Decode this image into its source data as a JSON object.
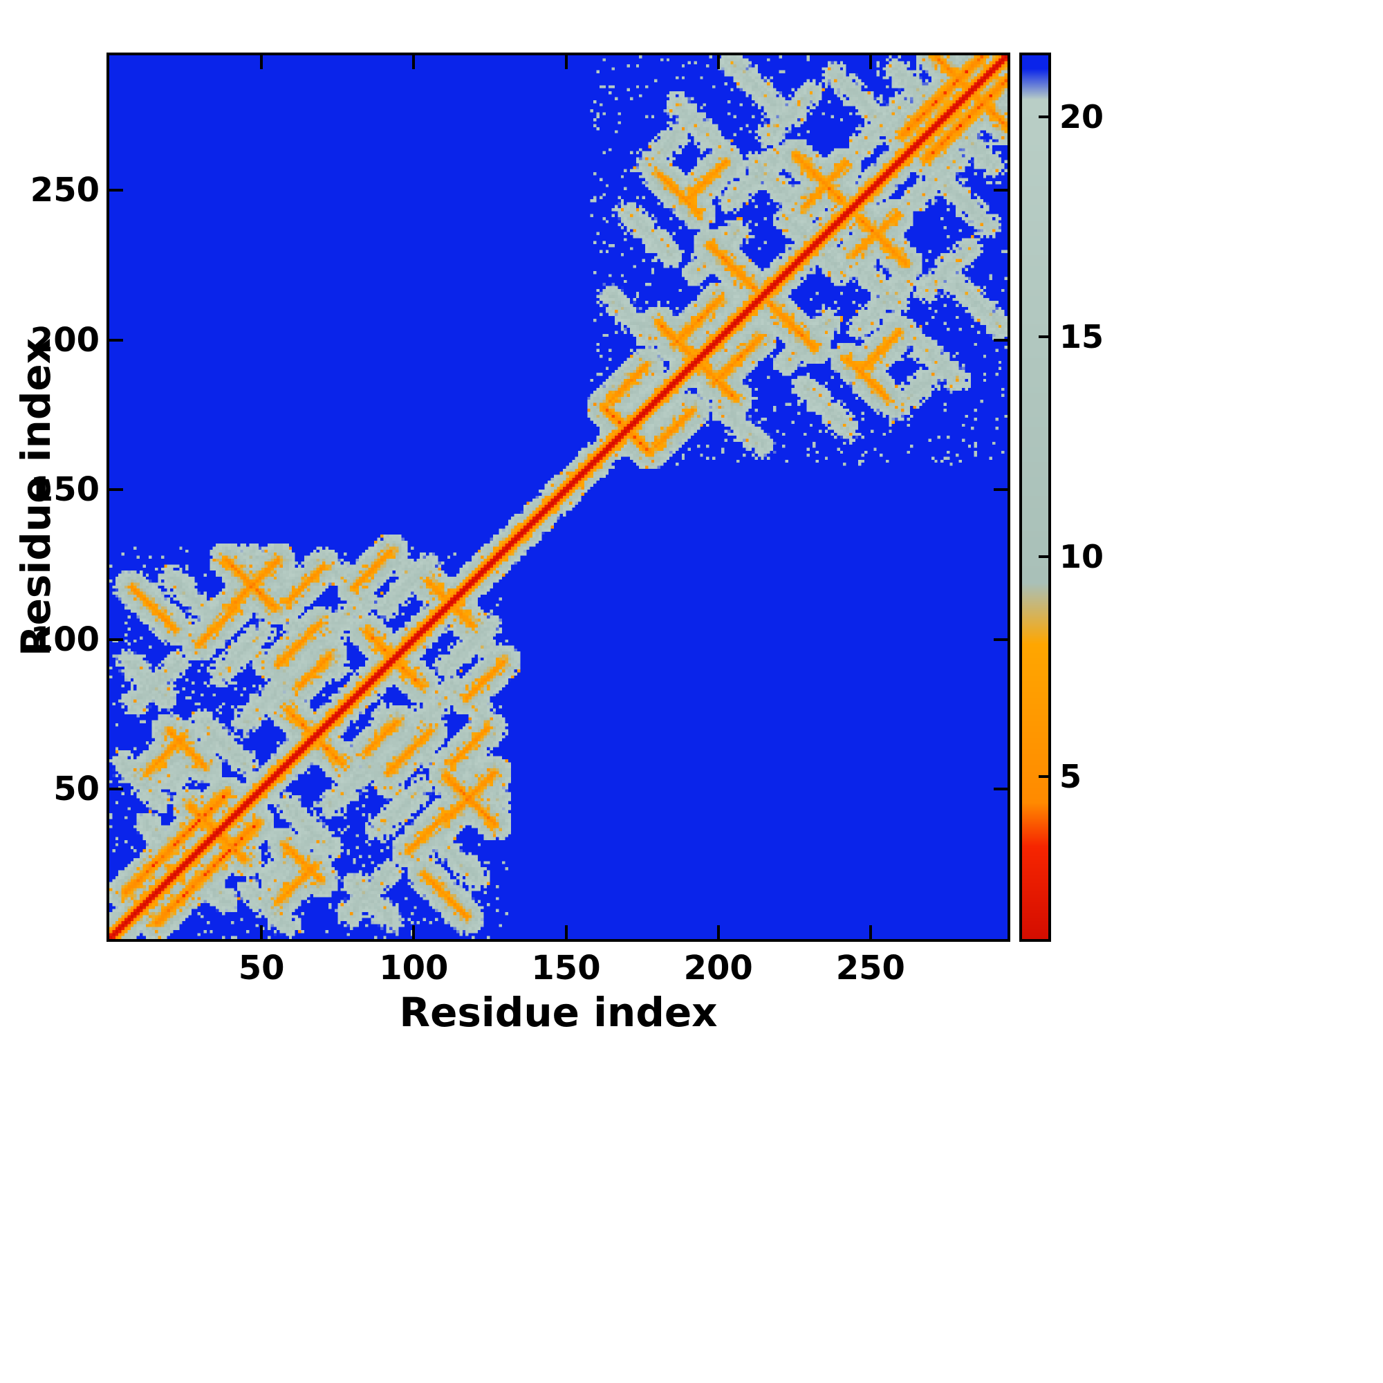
{
  "figure": {
    "background": "#ffffff"
  },
  "chart_data": {
    "type": "heatmap",
    "title": "",
    "xlabel": "Residue index",
    "ylabel": "Residue index",
    "n_residues": 295,
    "x_ticks": [
      50,
      100,
      150,
      200,
      250
    ],
    "y_ticks": [
      50,
      100,
      150,
      200,
      250
    ],
    "colorbar_ticks": [
      5,
      10,
      15,
      20
    ],
    "colorbar_range": [
      1.3,
      21.4
    ],
    "background_value": 22,
    "diagonal_scale": 2.55,
    "colors": {
      "far_blue": "#0a24ea",
      "mid_sage": "#a9c0b8",
      "near_orange": "#ff9a00",
      "contact_red": "#e01000"
    },
    "colormap": [
      {
        "v": 1.3,
        "c": "#d40d00"
      },
      {
        "v": 3.4,
        "c": "#f62500"
      },
      {
        "v": 4.4,
        "c": "#ff8a00"
      },
      {
        "v": 8.0,
        "c": "#ffa600"
      },
      {
        "v": 9.4,
        "c": "#a9c0b8"
      },
      {
        "v": 20.4,
        "c": "#b9cec6"
      },
      {
        "v": 21.1,
        "c": "#0a24ea"
      },
      {
        "v": 22.0,
        "c": "#0a24ea"
      }
    ],
    "domains": [
      [
        0,
        130
      ],
      [
        158,
        295
      ]
    ],
    "noise": {
      "speckle": 7,
      "orange_speck_p": 0.02,
      "block_speckle_p": 0.05
    },
    "segments": [
      [
        5,
        15,
        38,
        48,
        4.2
      ],
      [
        26,
        44,
        44,
        26,
        5
      ],
      [
        39,
        110,
        55,
        126,
        5
      ],
      [
        38,
        126,
        54,
        110,
        5
      ],
      [
        29,
        98,
        41,
        110,
        5.5
      ],
      [
        7,
        117,
        21,
        103,
        5.5
      ],
      [
        58,
        112,
        70,
        124,
        5.5
      ],
      [
        58,
        76,
        76,
        58,
        5
      ],
      [
        62,
        84,
        72,
        94,
        5.5
      ],
      [
        84,
        102,
        102,
        84,
        5
      ],
      [
        55,
        91,
        69,
        105,
        5.5
      ],
      [
        104,
        119,
        118,
        105,
        5.5
      ],
      [
        80,
        117,
        92,
        129,
        5.5
      ],
      [
        19,
        69,
        31,
        57,
        5.5
      ],
      [
        12,
        55,
        24,
        67,
        5.5
      ],
      [
        162,
        177,
        177,
        162,
        4.6
      ],
      [
        164,
        179,
        176,
        191,
        5.2
      ],
      [
        180,
        205,
        196,
        189,
        5
      ],
      [
        185,
        198,
        200,
        213,
        5
      ],
      [
        197,
        231,
        212,
        216,
        5
      ],
      [
        225,
        261,
        240,
        246,
        5
      ],
      [
        228,
        244,
        241,
        258,
        5.5
      ],
      [
        189,
        246,
        202,
        259,
        5.5
      ],
      [
        180,
        255,
        193,
        242,
        5.5
      ],
      [
        260,
        268,
        290,
        298,
        4.2
      ],
      [
        270,
        295,
        286,
        279,
        5
      ]
    ],
    "web_segments": [
      [
        4,
        58,
        16,
        46
      ],
      [
        6,
        92,
        18,
        80
      ],
      [
        20,
        120,
        34,
        106
      ],
      [
        46,
        128,
        58,
        116
      ],
      [
        30,
        72,
        44,
        58
      ],
      [
        48,
        94,
        62,
        80
      ],
      [
        70,
        126,
        84,
        112
      ],
      [
        92,
        128,
        106,
        114
      ],
      [
        12,
        38,
        24,
        26
      ],
      [
        60,
        104,
        74,
        90
      ],
      [
        8,
        78,
        22,
        92
      ],
      [
        36,
        88,
        50,
        102
      ],
      [
        66,
        96,
        80,
        110
      ],
      [
        20,
        52,
        34,
        66
      ],
      [
        44,
        72,
        58,
        86
      ],
      [
        90,
        110,
        104,
        124
      ],
      [
        164,
        214,
        178,
        200
      ],
      [
        170,
        242,
        184,
        228
      ],
      [
        186,
        278,
        200,
        264
      ],
      [
        204,
        292,
        218,
        278
      ],
      [
        212,
        258,
        226,
        244
      ],
      [
        238,
        288,
        252,
        274
      ],
      [
        258,
        290,
        272,
        276
      ],
      [
        192,
        222,
        206,
        236
      ],
      [
        216,
        268,
        230,
        282
      ],
      [
        246,
        264,
        260,
        278
      ],
      [
        176,
        258,
        190,
        272
      ],
      [
        204,
        246,
        218,
        260
      ],
      [
        226,
        236,
        240,
        222
      ]
    ]
  }
}
